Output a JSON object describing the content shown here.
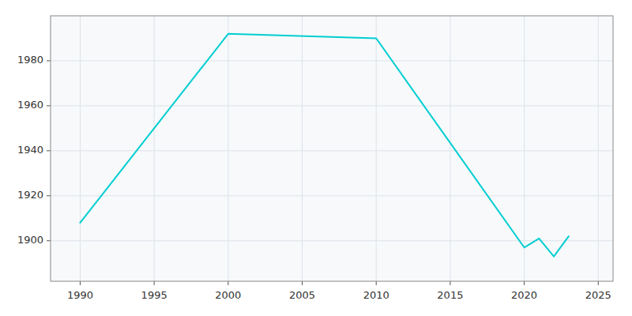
{
  "chart_data": {
    "type": "line",
    "x": [
      1990,
      2000,
      2010,
      2020,
      2021,
      2022,
      2023
    ],
    "values": [
      1908,
      1992,
      1990,
      1897,
      1901,
      1893,
      1902
    ],
    "color": "#00CED1",
    "xlim": [
      1988,
      2026
    ],
    "ylim": [
      1882,
      2000
    ],
    "xticks": [
      1990,
      1995,
      2000,
      2005,
      2010,
      2015,
      2020,
      2025
    ],
    "yticks": [
      1900,
      1920,
      1940,
      1960,
      1980
    ],
    "grid": true
  }
}
